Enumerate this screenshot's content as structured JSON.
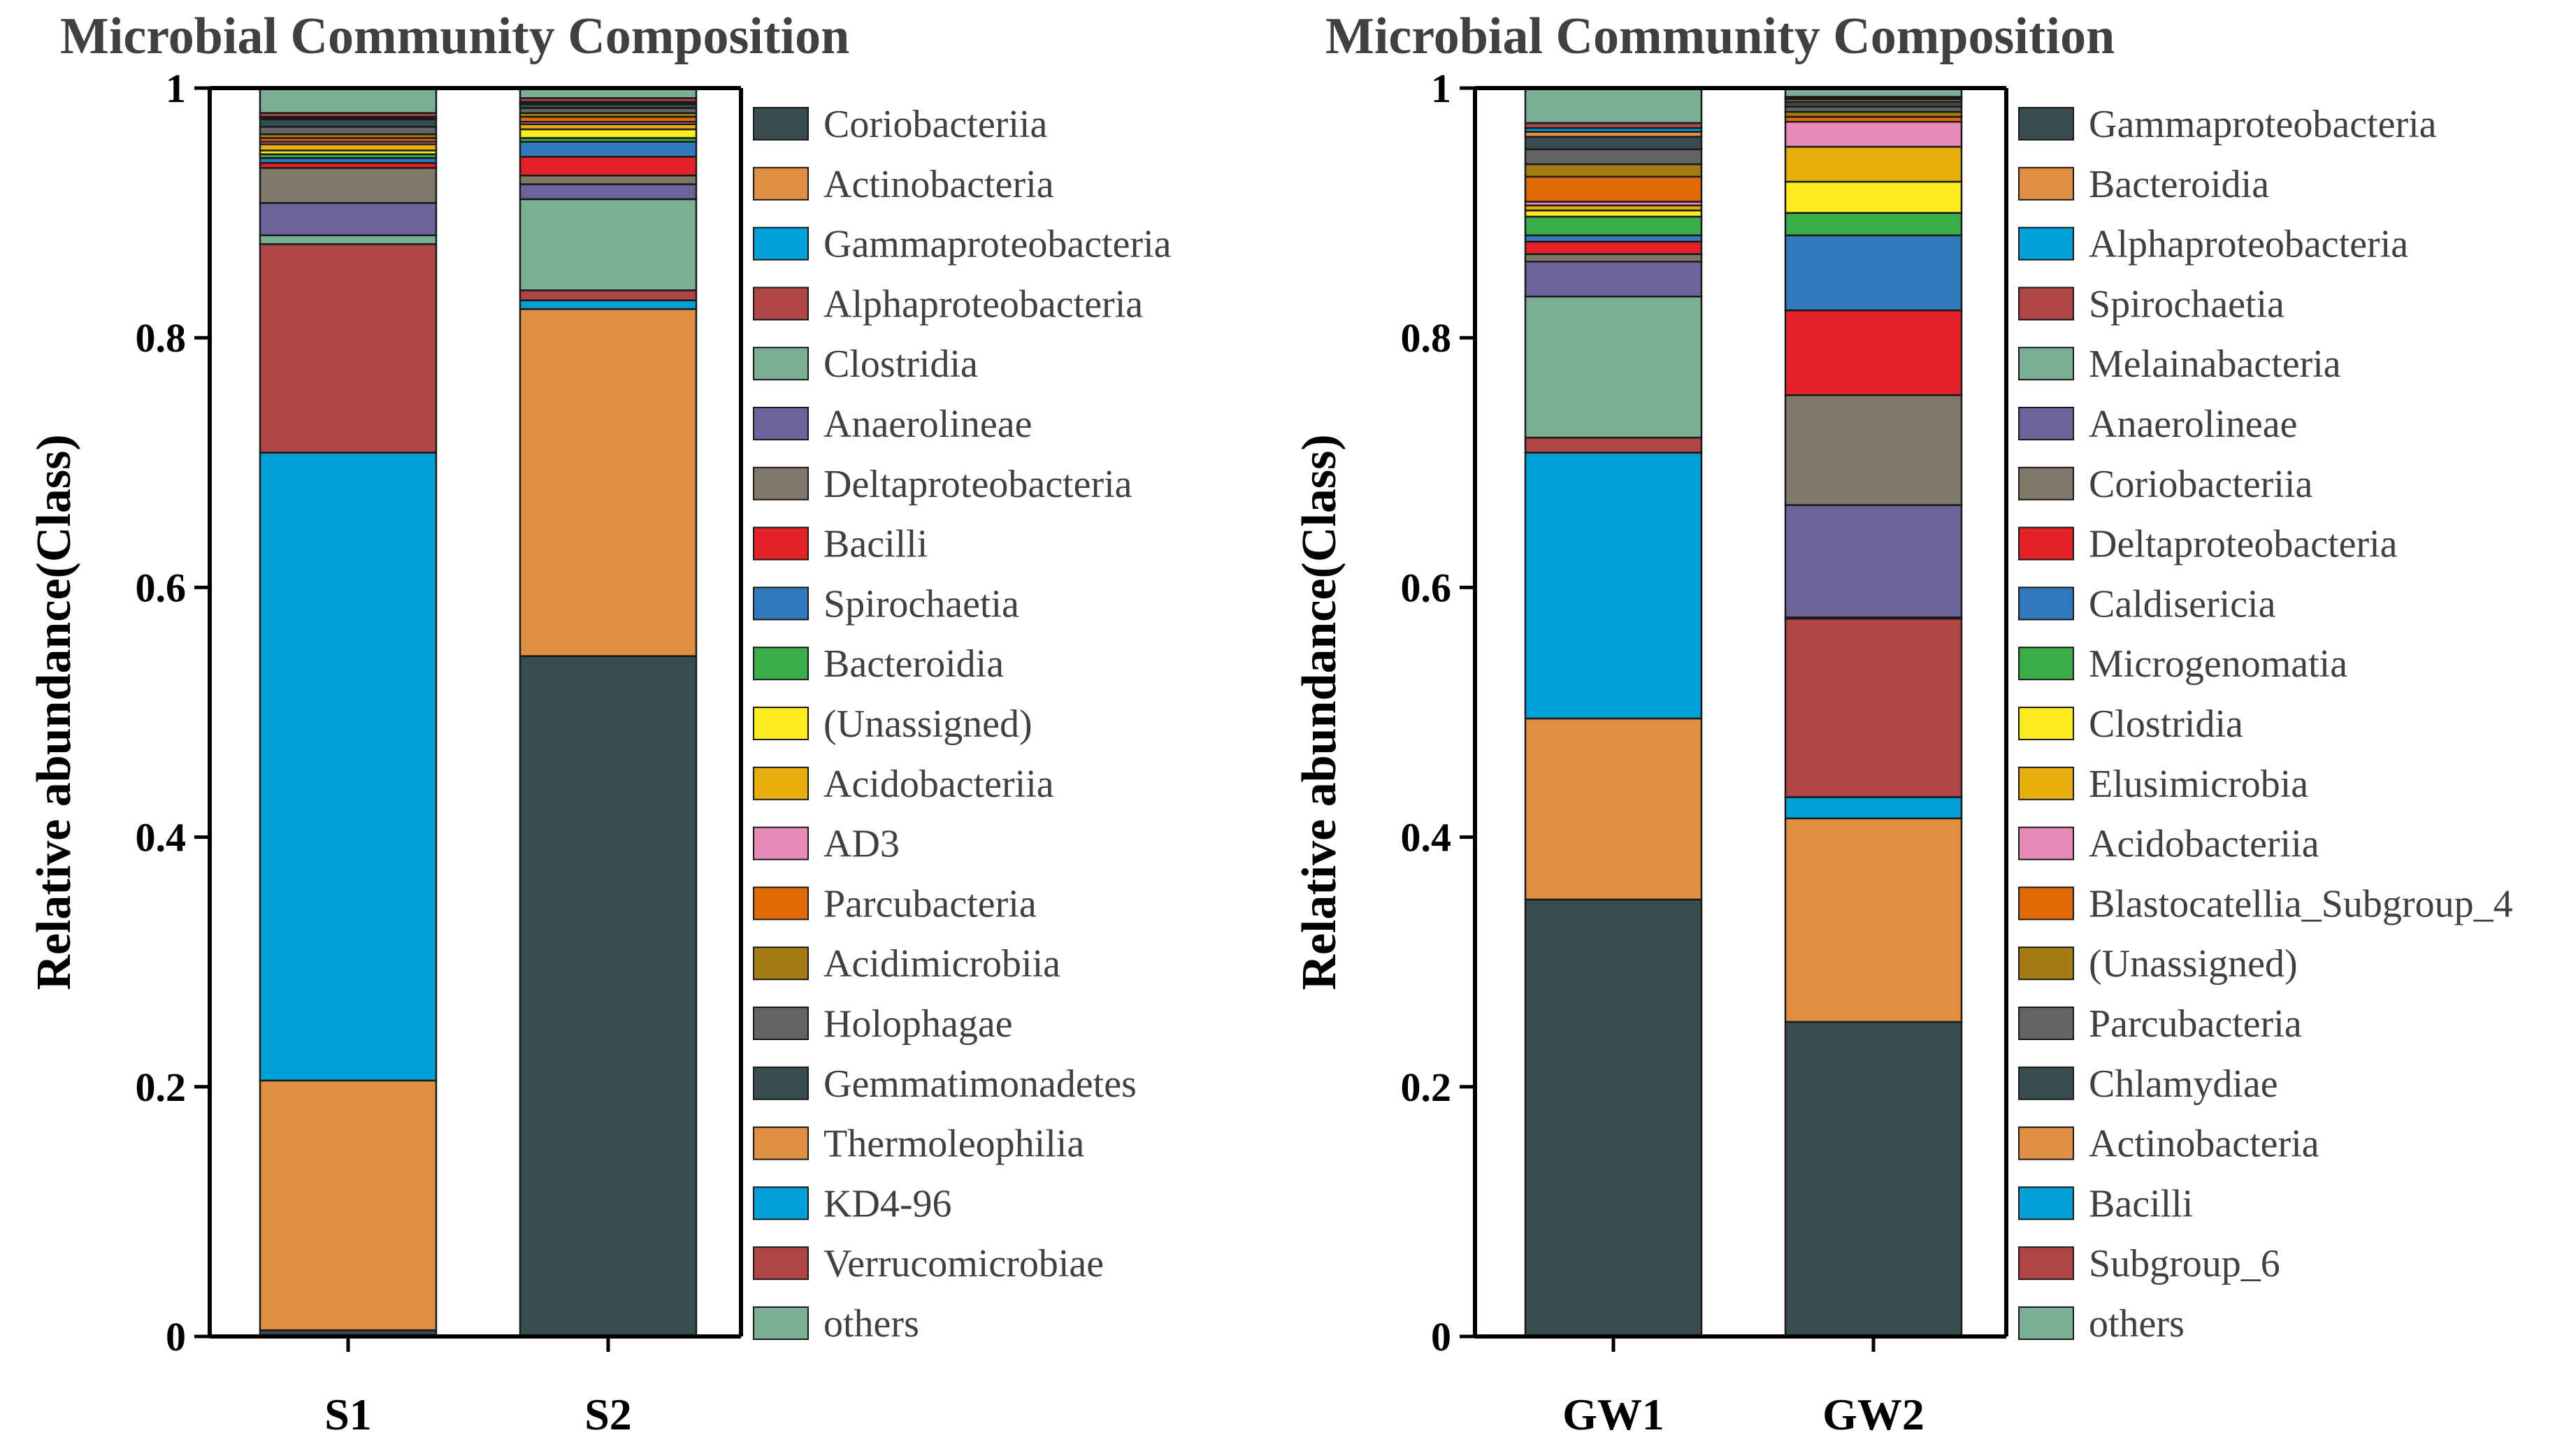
{
  "chart_data": [
    {
      "type": "bar",
      "stacked": true,
      "title": "Microbial Community Composition",
      "xlabel": "",
      "ylabel": "Relative abundance(Class)",
      "ylim": [
        0,
        1
      ],
      "yticks": [
        "0",
        "0.2",
        "0.4",
        "0.6",
        "0.8",
        "1"
      ],
      "categories": [
        "S1",
        "S2"
      ],
      "series": [
        {
          "name": "Coriobacteriia",
          "color": "#374B51",
          "values": [
            0.005,
            0.545
          ]
        },
        {
          "name": "Actinobacteria",
          "color": "#E08E42",
          "values": [
            0.2,
            0.278
          ]
        },
        {
          "name": "Gammaproteobacteria",
          "color": "#00A0D6",
          "values": [
            0.503,
            0.007
          ]
        },
        {
          "name": "Alphaproteobacteria",
          "color": "#B04546",
          "values": [
            0.167,
            0.008
          ]
        },
        {
          "name": "Clostridia",
          "color": "#7BAF95",
          "values": [
            0.007,
            0.073
          ]
        },
        {
          "name": "Anaerolineae",
          "color": "#6A639C",
          "values": [
            0.026,
            0.012
          ]
        },
        {
          "name": "Deltaproteobacteria",
          "color": "#807768",
          "values": [
            0.028,
            0.007
          ]
        },
        {
          "name": "Bacilli",
          "color": "#E22226",
          "values": [
            0.004,
            0.015
          ]
        },
        {
          "name": "Spirochaetia",
          "color": "#3278BD",
          "values": [
            0.004,
            0.012
          ]
        },
        {
          "name": "Bacteroidia",
          "color": "#3BAD48",
          "values": [
            0.003,
            0.003
          ]
        },
        {
          "name": "(Unassigned)",
          "color": "#FCEB21",
          "values": [
            0.003,
            0.007
          ]
        },
        {
          "name": "Acidobacteriia",
          "color": "#E6AF0B",
          "values": [
            0.005,
            0.004
          ]
        },
        {
          "name": "AD3",
          "color": "#E88AB7",
          "values": [
            0.002,
            0.002
          ]
        },
        {
          "name": "Parcubacteria",
          "color": "#E06A05",
          "values": [
            0.003,
            0.004
          ]
        },
        {
          "name": "Acidimicrobiia",
          "color": "#A67B14",
          "values": [
            0.003,
            0.003
          ]
        },
        {
          "name": "Holophagae",
          "color": "#646464",
          "values": [
            0.006,
            0.004
          ]
        },
        {
          "name": "Gemmatimonadetes",
          "color": "#374B51",
          "values": [
            0.006,
            0.003
          ]
        },
        {
          "name": "Thermoleophilia",
          "color": "#E08E42",
          "values": [
            0.001,
            0.001
          ]
        },
        {
          "name": "KD4-96",
          "color": "#00A0D6",
          "values": [
            0.001,
            0.001
          ]
        },
        {
          "name": "Verrucomicrobiae",
          "color": "#B04546",
          "values": [
            0.003,
            0.003
          ]
        },
        {
          "name": "others",
          "color": "#7BAF95",
          "values": [
            0.02,
            0.008
          ]
        }
      ]
    },
    {
      "type": "bar",
      "stacked": true,
      "title": "Microbial Community Composition",
      "xlabel": "",
      "ylabel": "Relative abundance(Class)",
      "ylim": [
        0,
        1
      ],
      "yticks": [
        "0",
        "0.2",
        "0.4",
        "0.6",
        "0.8",
        "1"
      ],
      "categories": [
        "GW1",
        "GW2"
      ],
      "series": [
        {
          "name": "Gammaproteobacteria",
          "color": "#374B51",
          "values": [
            0.35,
            0.252
          ]
        },
        {
          "name": "Bacteroidia",
          "color": "#E08E42",
          "values": [
            0.145,
            0.163
          ]
        },
        {
          "name": "Alphaproteobacteria",
          "color": "#00A0D6",
          "values": [
            0.213,
            0.017
          ]
        },
        {
          "name": "Spirochaetia",
          "color": "#B04546",
          "values": [
            0.012,
            0.143
          ]
        },
        {
          "name": "Melainabacteria",
          "color": "#7BAF95",
          "values": [
            0.113,
            0.001
          ]
        },
        {
          "name": "Anaerolineae",
          "color": "#6A639C",
          "values": [
            0.028,
            0.09
          ]
        },
        {
          "name": "Coriobacteriia",
          "color": "#807768",
          "values": [
            0.006,
            0.088
          ]
        },
        {
          "name": "Deltaproteobacteria",
          "color": "#E22226",
          "values": [
            0.01,
            0.068
          ]
        },
        {
          "name": "Caldisericia",
          "color": "#3278BD",
          "values": [
            0.005,
            0.06
          ]
        },
        {
          "name": "Microgenomatia",
          "color": "#3BAD48",
          "values": [
            0.015,
            0.018
          ]
        },
        {
          "name": "Clostridia",
          "color": "#FCEB21",
          "values": [
            0.005,
            0.025
          ]
        },
        {
          "name": "Elusimicrobia",
          "color": "#E6AF0B",
          "values": [
            0.004,
            0.028
          ]
        },
        {
          "name": "Acidobacteriia",
          "color": "#E88AB7",
          "values": [
            0.003,
            0.02
          ]
        },
        {
          "name": "Blastocatellia_Subgroup_4",
          "color": "#E06A05",
          "values": [
            0.02,
            0.004
          ]
        },
        {
          "name": "(Unassigned)",
          "color": "#A67B14",
          "values": [
            0.01,
            0.004
          ]
        },
        {
          "name": "Parcubacteria",
          "color": "#646464",
          "values": [
            0.012,
            0.004
          ]
        },
        {
          "name": "Chlamydiae",
          "color": "#374B51",
          "values": [
            0.01,
            0.004
          ]
        },
        {
          "name": "Actinobacteria",
          "color": "#E08E42",
          "values": [
            0.004,
            0.002
          ]
        },
        {
          "name": "Bacilli",
          "color": "#00A0D6",
          "values": [
            0.003,
            0.001
          ]
        },
        {
          "name": "Subgroup_6",
          "color": "#B04546",
          "values": [
            0.004,
            0.001
          ]
        },
        {
          "name": "others",
          "color": "#7BAF95",
          "values": [
            0.028,
            0.007
          ]
        }
      ]
    }
  ]
}
